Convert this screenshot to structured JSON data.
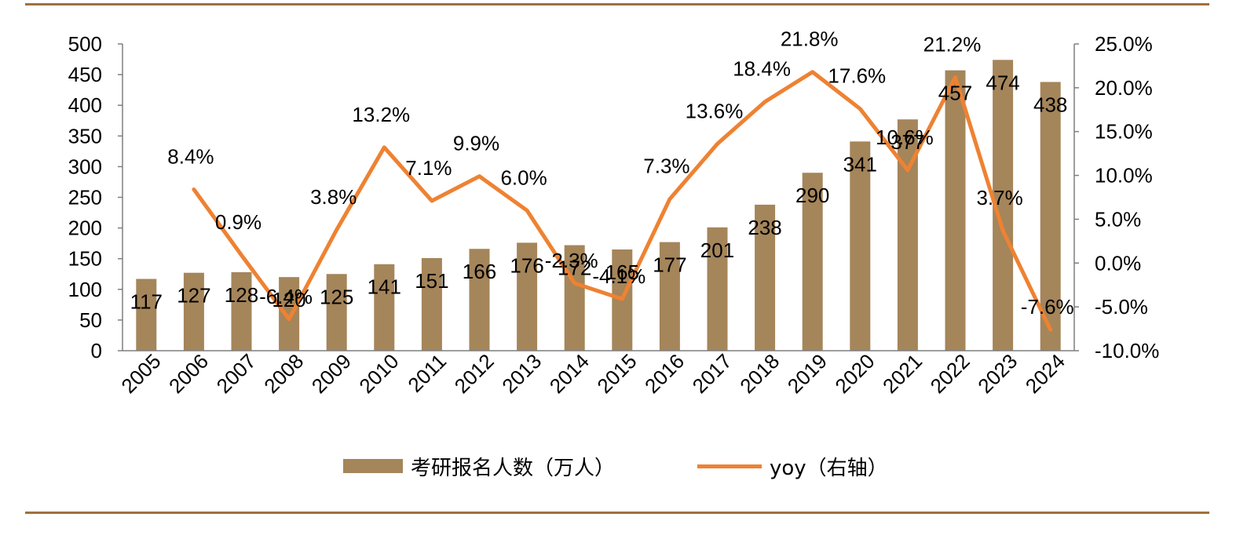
{
  "colors": {
    "bar": "#a5855a",
    "line": "#ee8232",
    "rule": "#a0703f",
    "axis": "#7f7f7f"
  },
  "legend": {
    "bar_label": "考研报名人数（万人）",
    "line_label": "yoy（右轴）"
  },
  "chart_data": {
    "type": "bar",
    "categories": [
      "2005",
      "2006",
      "2007",
      "2008",
      "2009",
      "2010",
      "2011",
      "2012",
      "2013",
      "2014",
      "2015",
      "2016",
      "2017",
      "2018",
      "2019",
      "2020",
      "2021",
      "2022",
      "2023",
      "2024"
    ],
    "series": [
      {
        "name": "考研报名人数（万人）",
        "type": "bar",
        "axis": "left",
        "values": [
          117,
          127,
          128,
          120,
          125,
          141,
          151,
          166,
          176,
          172,
          165,
          177,
          201,
          238,
          290,
          341,
          377,
          457,
          474,
          438
        ],
        "labels": [
          "117",
          "127",
          "128",
          "120",
          "125",
          "141",
          "151",
          "166",
          "176",
          "172",
          "165",
          "177",
          "201",
          "238",
          "290",
          "341",
          "377",
          "457",
          "474",
          "438"
        ]
      },
      {
        "name": "yoy（右轴）",
        "type": "line",
        "axis": "right",
        "values": [
          null,
          8.4,
          0.9,
          -6.4,
          3.8,
          13.2,
          7.1,
          9.9,
          6.0,
          -2.3,
          -4.1,
          7.3,
          13.6,
          18.4,
          21.8,
          17.6,
          10.6,
          21.2,
          3.7,
          -7.6
        ],
        "labels": [
          null,
          "8.4%",
          "0.9%",
          "-6.4%",
          "3.8%",
          "13.2%",
          "7.1%",
          "9.9%",
          "6.0%",
          "-2.3%",
          "-4.1%",
          "7.3%",
          "13.6%",
          "18.4%",
          "21.8%",
          "17.6%",
          "10.6%",
          "21.2%",
          "3.7%",
          "-7.6%"
        ]
      }
    ],
    "y_left": {
      "min": 0,
      "max": 500,
      "ticks": [
        "0",
        "50",
        "100",
        "150",
        "200",
        "250",
        "300",
        "350",
        "400",
        "450",
        "500"
      ]
    },
    "y_right": {
      "min": -10,
      "max": 25,
      "ticks": [
        "-10.0%",
        "-5.0%",
        "0.0%",
        "5.0%",
        "10.0%",
        "15.0%",
        "20.0%",
        "25.0%"
      ]
    },
    "grid": false,
    "legend_position": "bottom"
  }
}
